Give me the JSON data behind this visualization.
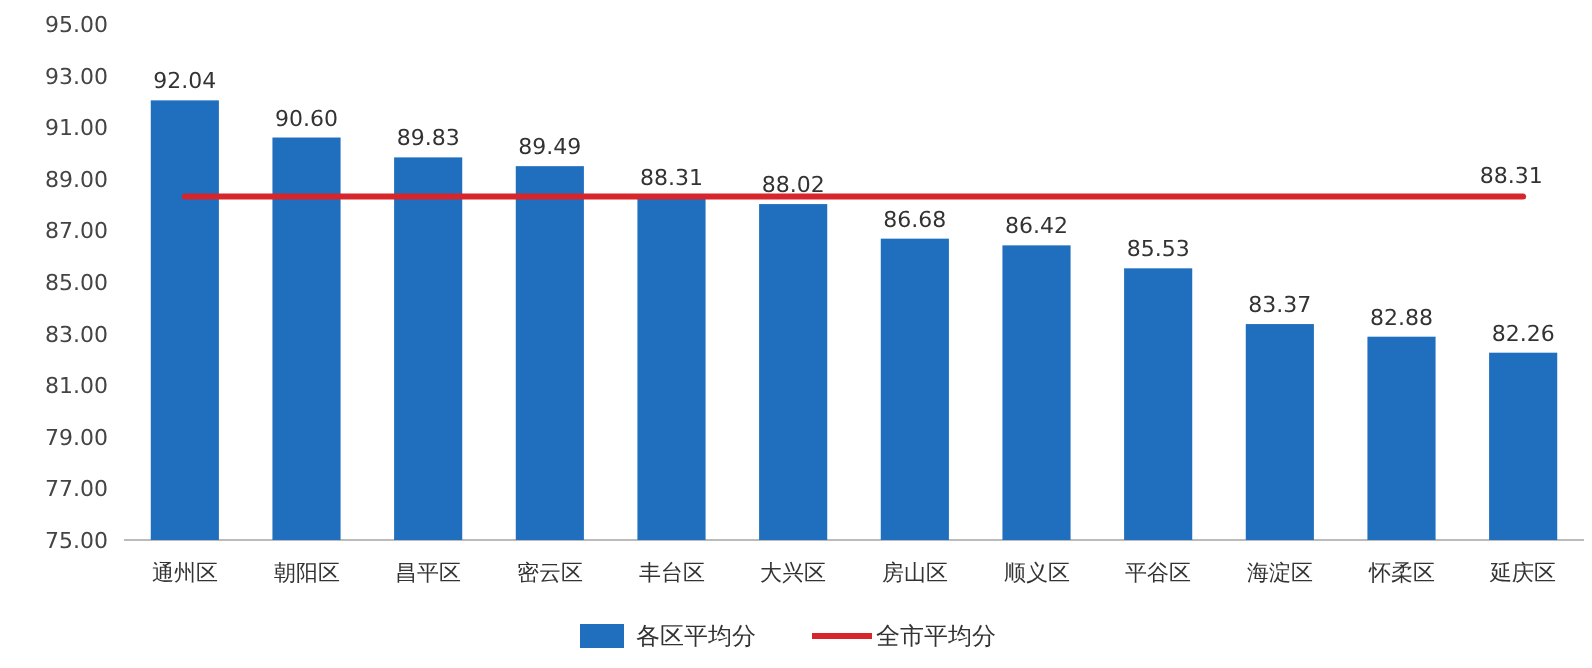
{
  "chart_data": {
    "type": "bar",
    "categories": [
      "通州区",
      "朝阳区",
      "昌平区",
      "密云区",
      "丰台区",
      "大兴区",
      "房山区",
      "顺义区",
      "平谷区",
      "海淀区",
      "怀柔区",
      "延庆区"
    ],
    "ylim": [
      75,
      95
    ],
    "yticks": [
      {
        "value": 75,
        "label": "75.00"
      },
      {
        "value": 77,
        "label": "77.00"
      },
      {
        "value": 79,
        "label": "79.00"
      },
      {
        "value": 81,
        "label": "81.00"
      },
      {
        "value": 83,
        "label": "83.00"
      },
      {
        "value": 85,
        "label": "85.00"
      },
      {
        "value": 87,
        "label": "87.00"
      },
      {
        "value": 89,
        "label": "89.00"
      },
      {
        "value": 91,
        "label": "91.00"
      },
      {
        "value": 93,
        "label": "93.00"
      },
      {
        "value": 95,
        "label": "95.00"
      }
    ],
    "legend": "bottom",
    "series": [
      {
        "name": "各区平均分",
        "color": "#1f6fbe",
        "values": [
          92.04,
          90.6,
          89.83,
          89.49,
          88.31,
          88.02,
          86.68,
          86.42,
          85.53,
          83.37,
          82.88,
          82.26
        ],
        "value_labels": [
          "92.04",
          "90.60",
          "89.83",
          "89.49",
          "88.31",
          "88.02",
          "86.68",
          "86.42",
          "85.53",
          "83.37",
          "82.88",
          "82.26"
        ]
      },
      {
        "name": "全市平均分",
        "type": "line",
        "color": "#d7262b",
        "values": [
          88.31,
          88.31,
          88.31,
          88.31,
          88.31,
          88.31,
          88.31,
          88.31,
          88.31,
          88.31,
          88.31,
          88.31
        ],
        "value_labels": [
          null,
          null,
          null,
          null,
          null,
          null,
          null,
          null,
          null,
          null,
          null,
          "88.31"
        ]
      }
    ]
  }
}
